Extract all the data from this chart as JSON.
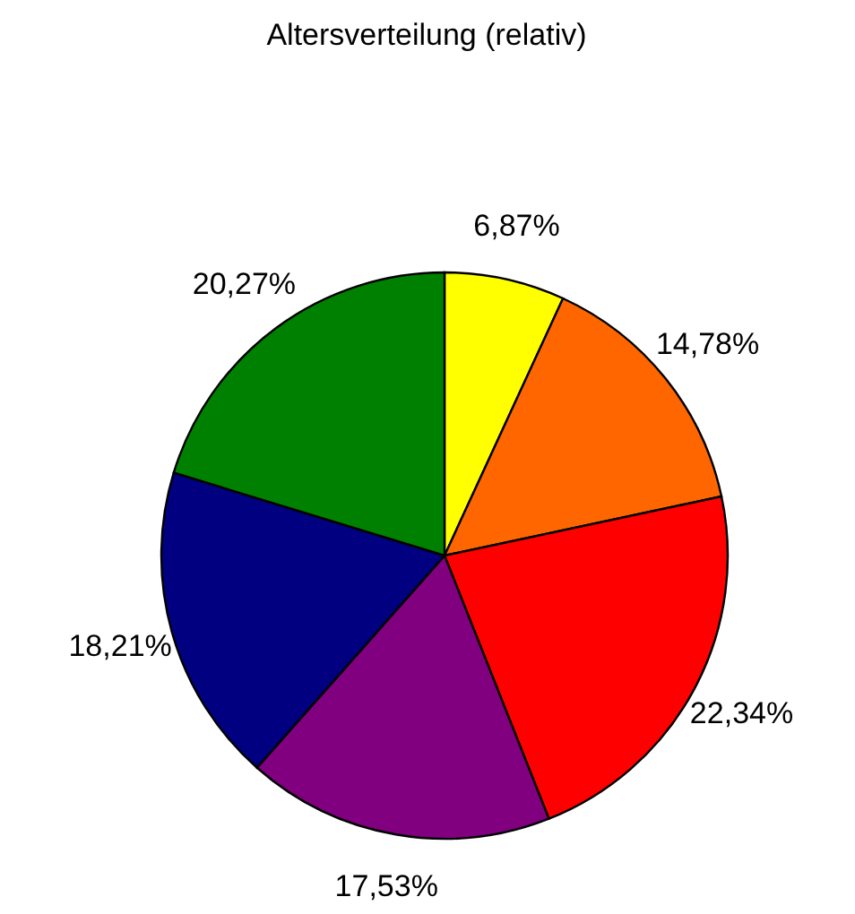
{
  "chart_data": {
    "type": "pie",
    "title": "Altersverteilung (relativ)",
    "categories": [
      null,
      null,
      null,
      null,
      null,
      null
    ],
    "values": [
      6.87,
      14.78,
      22.34,
      17.53,
      18.21,
      20.27
    ],
    "value_labels": [
      "6,87%",
      "14,78%",
      "22,34%",
      "17,53%",
      "18,21%",
      "20,27%"
    ],
    "colors": [
      "#ffff00",
      "#ff6600",
      "#ff0000",
      "#800080",
      "#000080",
      "#008000"
    ]
  }
}
